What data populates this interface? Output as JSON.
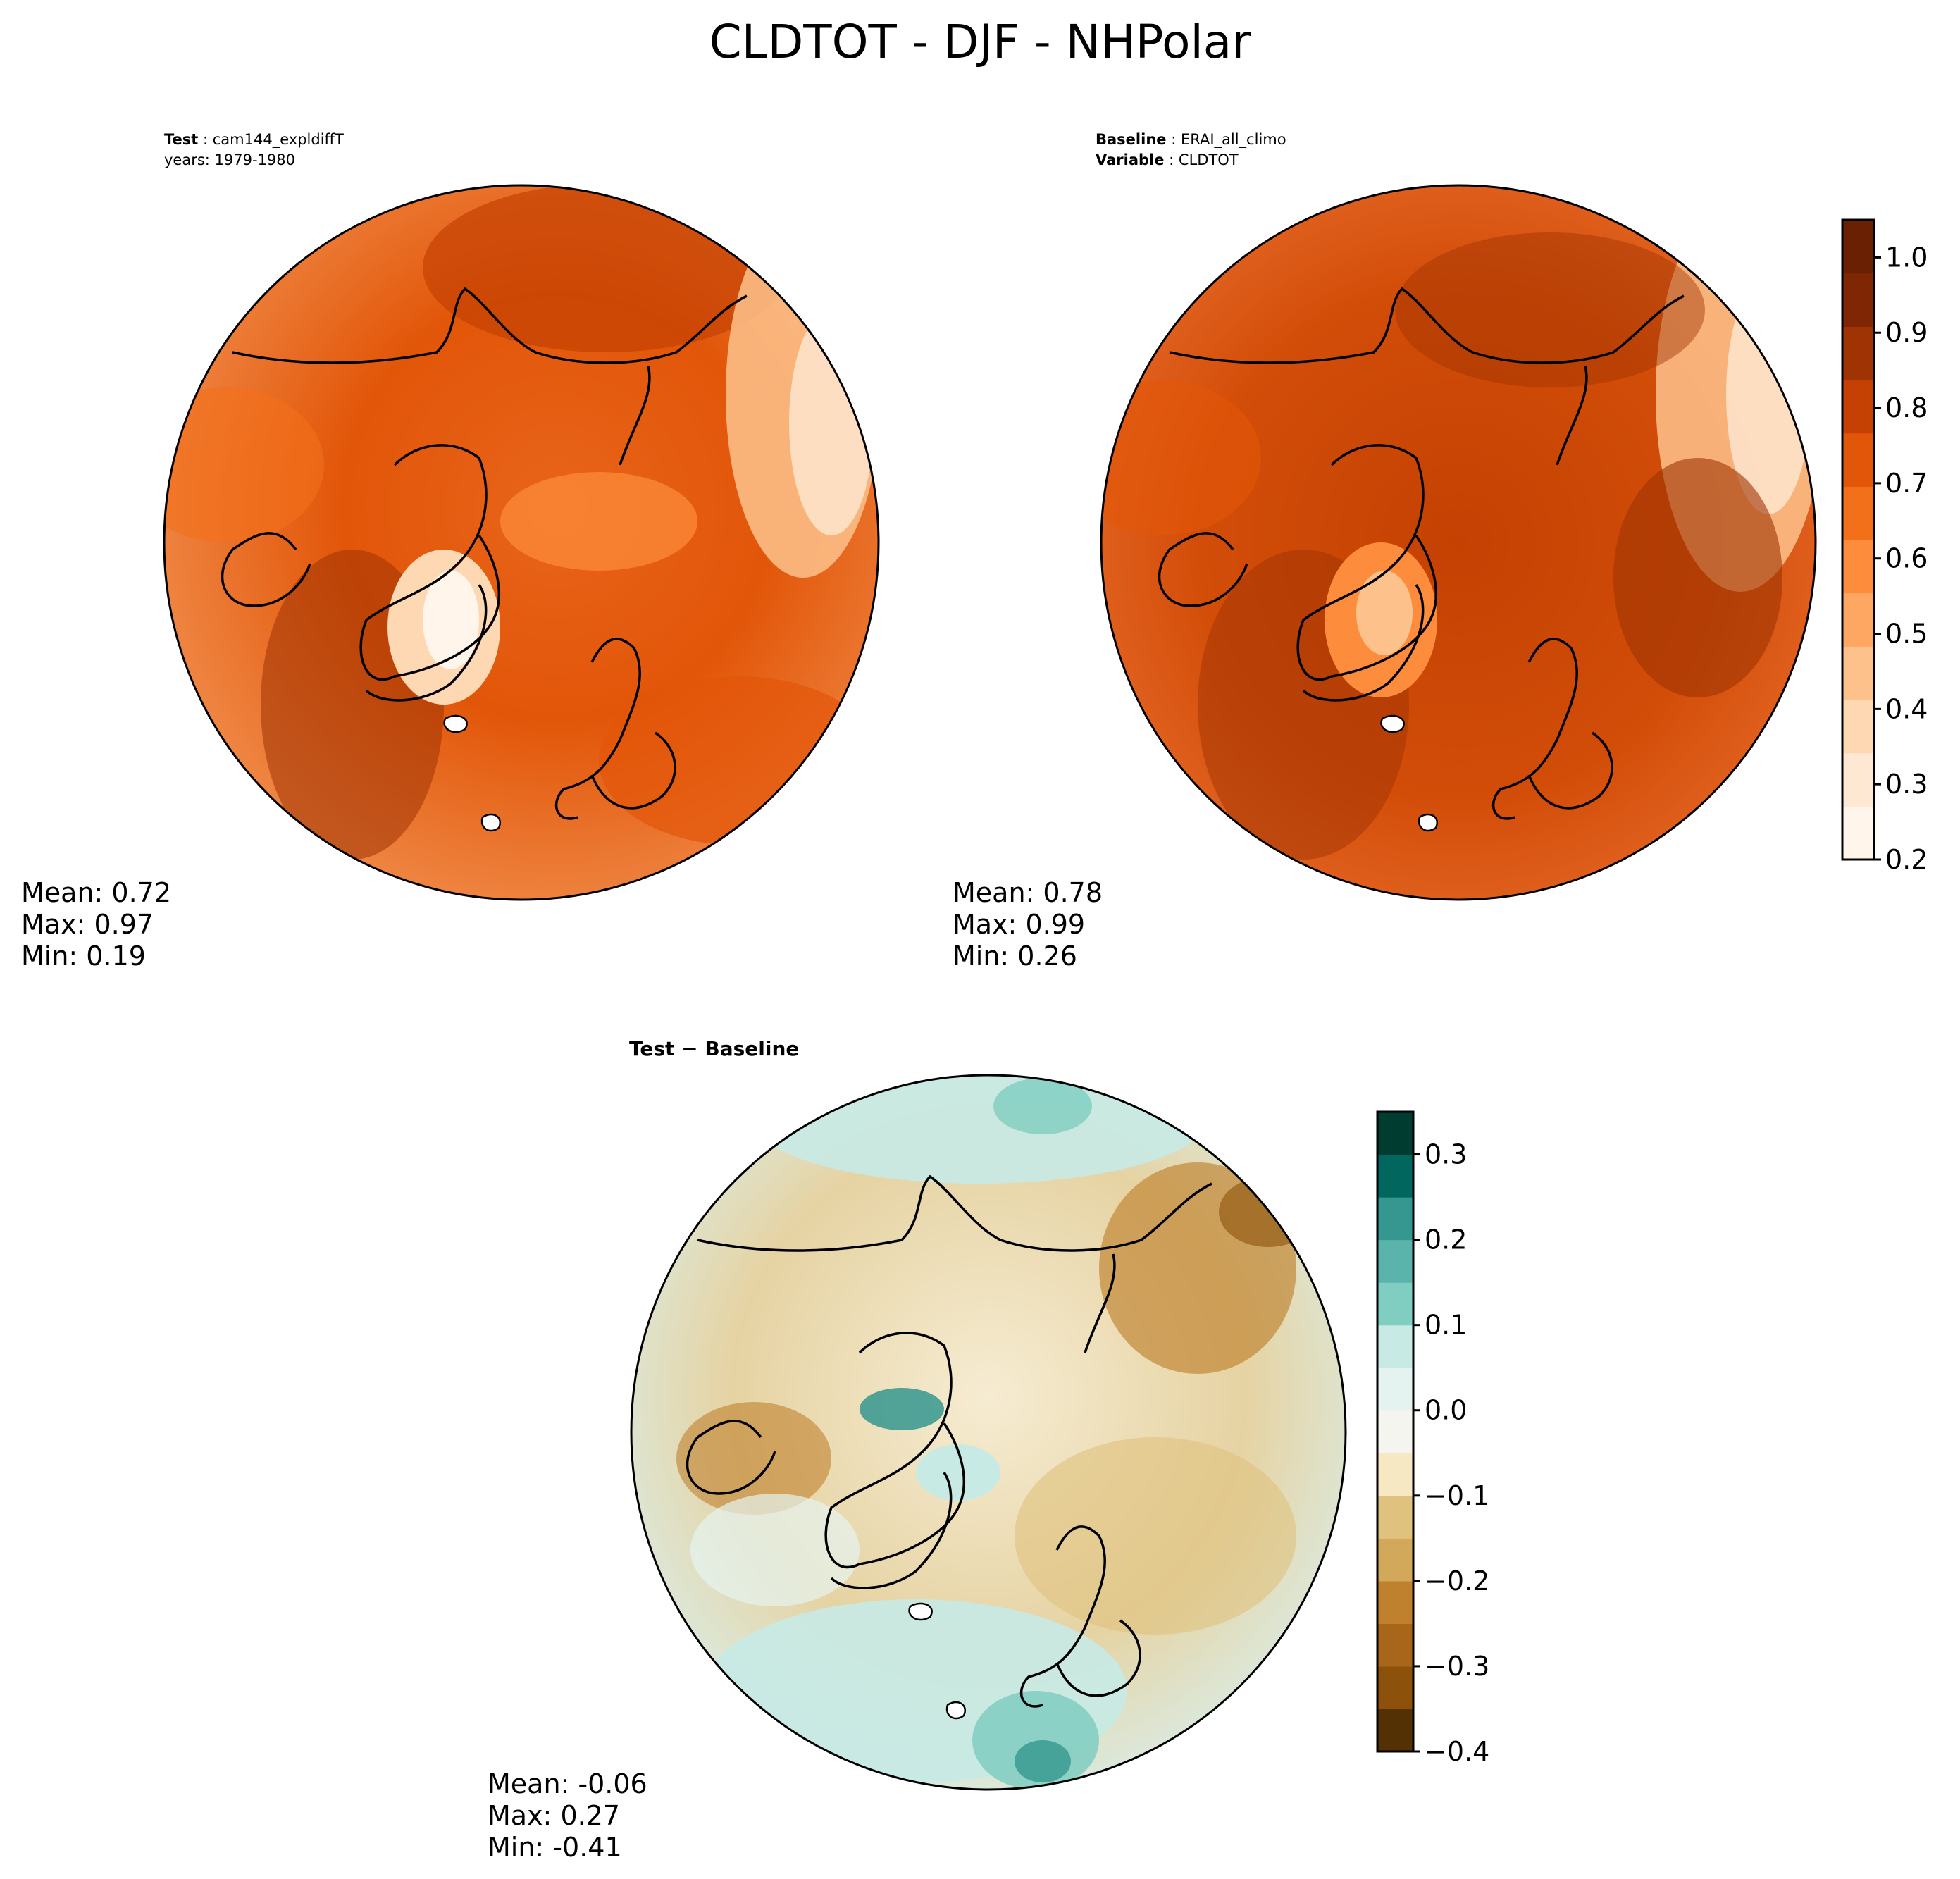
{
  "title": "CLDTOT - DJF - NHPolar",
  "panels": {
    "test": {
      "label_key": "Test",
      "label_value": "cam144_expldiffT",
      "line2": "years: 1979-1980",
      "stats": {
        "mean": "Mean:  0.72",
        "max": "Max:  0.97",
        "min": "Min:  0.19"
      }
    },
    "baseline": {
      "label_key": "Baseline",
      "label_value": "ERAI_all_climo",
      "line2_key": "Variable",
      "line2_value": "CLDTOT",
      "stats": {
        "mean": "Mean:  0.78",
        "max": "Max:  0.99",
        "min": "Min:  0.26"
      }
    },
    "diff": {
      "label": "Test − Baseline",
      "stats": {
        "mean": "Mean: -0.06",
        "max": "Max:  0.27",
        "min": "Min: -0.41"
      }
    }
  },
  "colorbar_top": {
    "ticks": [
      "1.0",
      "0.9",
      "0.8",
      "0.7",
      "0.6",
      "0.5",
      "0.4",
      "0.3",
      "0.2"
    ],
    "range": [
      0.2,
      1.05
    ],
    "colors": [
      "#fff5eb",
      "#fee8d3",
      "#fdd8b3",
      "#fdc28c",
      "#fda762",
      "#fd8d3c",
      "#f3701b",
      "#e25609",
      "#c44103",
      "#9f3303",
      "#7f2704",
      "#6a2003"
    ]
  },
  "colorbar_diff": {
    "ticks": [
      "0.3",
      "0.2",
      "0.1",
      "0.0",
      "−0.1",
      "−0.2",
      "−0.3",
      "−0.4"
    ],
    "range": [
      -0.4,
      0.35
    ],
    "colors": [
      "#543005",
      "#8c510a",
      "#a8661b",
      "#bf812d",
      "#d2a85b",
      "#dfc27d",
      "#f6e8c3",
      "#f5f5f0",
      "#e5f3f0",
      "#c7eae5",
      "#80cdc1",
      "#5ab4ac",
      "#35978f",
      "#01665e",
      "#003c30"
    ]
  }
}
